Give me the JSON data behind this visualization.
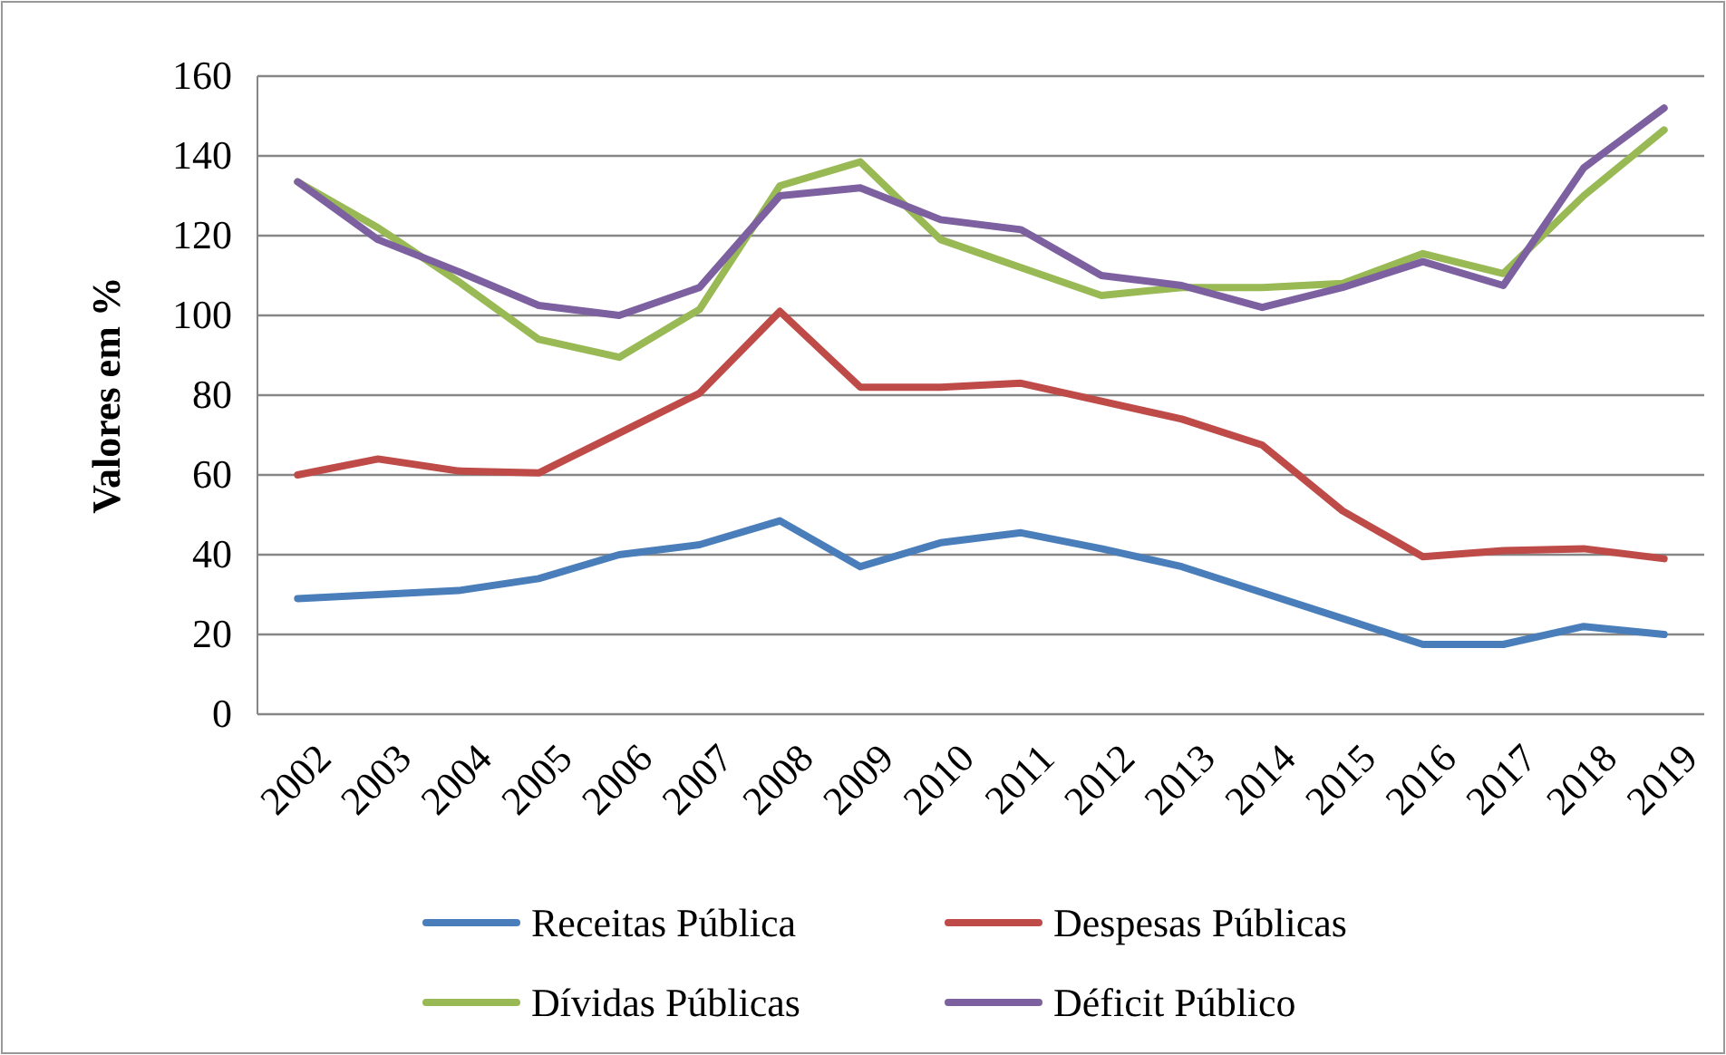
{
  "chart_data": {
    "type": "line",
    "ylabel": "Valores em %",
    "categories": [
      "2002",
      "2003",
      "2004",
      "2005",
      "2006",
      "2007",
      "2008",
      "2009",
      "2010",
      "2011",
      "2012",
      "2013",
      "2014",
      "2015",
      "2016",
      "2017",
      "2018",
      "2019"
    ],
    "series": [
      {
        "name": "Receitas Pública",
        "color": "#4a7ebb",
        "values": [
          29,
          30,
          31,
          34,
          40,
          42.5,
          48.5,
          37,
          43,
          45.5,
          41.5,
          37,
          30.5,
          24,
          17.5,
          17.5,
          22,
          20
        ]
      },
      {
        "name": "Despesas Públicas",
        "color": "#be4b48",
        "values": [
          60,
          64,
          61,
          60.5,
          70.5,
          80.5,
          101,
          82,
          82,
          83,
          78.5,
          74,
          67.5,
          51,
          39.5,
          41,
          41.5,
          39
        ]
      },
      {
        "name": "Dívidas Públicas",
        "color": "#98b954",
        "values": [
          133.5,
          122,
          108.5,
          94,
          89.5,
          101.5,
          132.5,
          138.5,
          119,
          112,
          105,
          107,
          107,
          108,
          115.5,
          110.5,
          130,
          146.5
        ]
      },
      {
        "name": "Déficit Público",
        "color": "#7d60a0",
        "values": [
          133.5,
          119,
          111,
          102.5,
          100,
          107,
          130,
          132,
          124,
          121.5,
          110,
          107.5,
          102,
          107,
          113.5,
          107.5,
          137,
          152
        ]
      }
    ],
    "ylim": [
      0,
      160
    ],
    "yticks": [
      0,
      20,
      40,
      60,
      80,
      100,
      120,
      140,
      160
    ],
    "grid": "y",
    "legend": "bottom",
    "marker": "none",
    "line_style": "solid"
  }
}
